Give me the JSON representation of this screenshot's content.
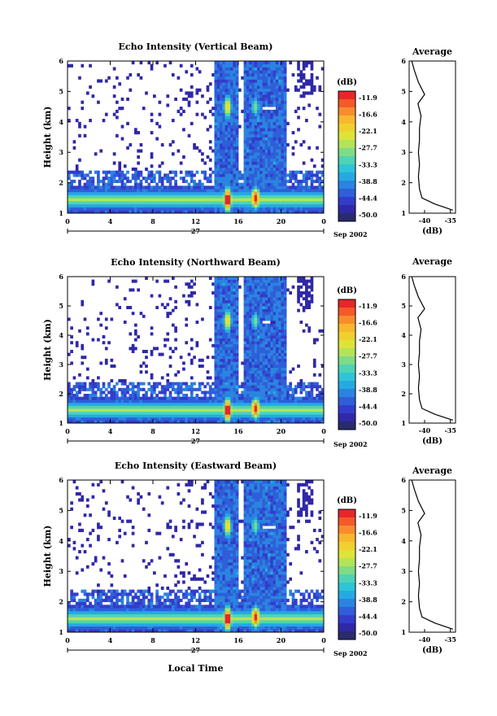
{
  "figure": {
    "xlabel": "Local Time",
    "day_label": "27",
    "month_label": "Sep 2002",
    "colorbar_unit": "(dB)",
    "average_title": "Average",
    "average_xlabel": "(dB)"
  },
  "colorbar": {
    "ticks": [
      "-11.9",
      "-16.6",
      "-22.1",
      "-27.7",
      "-33.3",
      "-38.8",
      "-44.4",
      "-50.0"
    ],
    "colors": [
      "#e8262a",
      "#f4592a",
      "#f98d2d",
      "#f8b72e",
      "#f0d02f",
      "#dde437",
      "#b3e35a",
      "#7fdb86",
      "#4fd3b5",
      "#2fc4d6",
      "#26a9e2",
      "#2a84e0",
      "#2f5ed8",
      "#333cc9",
      "#2f28a8",
      "#2a2a6e"
    ]
  },
  "chart_data": [
    {
      "type": "heatmap",
      "title": "Echo Intensity (Vertical Beam)",
      "ylabel": "Height (km)",
      "xlim": [
        0,
        24
      ],
      "ylim": [
        1,
        6
      ],
      "xticks": [
        "0",
        "4",
        "8",
        "12",
        "16",
        "20",
        "0"
      ],
      "yticks": [
        "1",
        "2",
        "3",
        "4",
        "5",
        "6"
      ],
      "value_range_dB": [
        -50.0,
        -11.9
      ],
      "features": [
        {
          "time_h": [
            14.2,
            16.0
          ],
          "height_km": [
            1.0,
            6.0
          ],
          "peak_dB": -11.9,
          "peak_height_km": 1.5
        },
        {
          "time_h": [
            16.5,
            19.5
          ],
          "height_km": [
            1.0,
            6.0
          ],
          "peak_dB": -16.6,
          "peak_height_km": 1.5
        },
        {
          "time_h": [
            0,
            24
          ],
          "height_km": [
            1.1,
            1.6
          ],
          "peak_dB": -27.7
        }
      ],
      "average": {
        "title": "Average",
        "xlabel": "(dB)",
        "xlim": [
          -43,
          -34
        ],
        "xticks": [
          "-40",
          "-35"
        ],
        "yticks": [
          "1",
          "2",
          "3",
          "4",
          "5",
          "6"
        ],
        "height_km": [
          1.1,
          1.3,
          1.5,
          1.8,
          2.2,
          2.6,
          3.0,
          3.4,
          3.8,
          4.2,
          4.4,
          4.6,
          4.9,
          5.3,
          5.7,
          6.0
        ],
        "dB": [
          -34.5,
          -38.0,
          -40.5,
          -41.0,
          -41.2,
          -41.0,
          -41.2,
          -41.0,
          -41.0,
          -40.7,
          -41.0,
          -41.3,
          -40.0,
          -41.2,
          -42.0,
          -42.5
        ]
      }
    },
    {
      "type": "heatmap",
      "title": "Echo Intensity (Northward Beam)",
      "ylabel": "Height (km)",
      "xlim": [
        0,
        24
      ],
      "ylim": [
        1,
        6
      ],
      "xticks": [
        "0",
        "4",
        "8",
        "12",
        "16",
        "20",
        "0"
      ],
      "yticks": [
        "1",
        "2",
        "3",
        "4",
        "5",
        "6"
      ],
      "value_range_dB": [
        -50.0,
        -11.9
      ],
      "features": [
        {
          "time_h": [
            14.2,
            16.0
          ],
          "height_km": [
            1.0,
            6.0
          ],
          "peak_dB": -11.9,
          "peak_height_km": 1.5
        },
        {
          "time_h": [
            16.5,
            19.5
          ],
          "height_km": [
            1.0,
            6.0
          ],
          "peak_dB": -16.6,
          "peak_height_km": 1.5
        },
        {
          "time_h": [
            0,
            24
          ],
          "height_km": [
            1.1,
            1.6
          ],
          "peak_dB": -27.7
        }
      ],
      "average": {
        "title": "Average",
        "xlabel": "(dB)",
        "xlim": [
          -43,
          -34
        ],
        "xticks": [
          "-40",
          "-35"
        ],
        "yticks": [
          "1",
          "2",
          "3",
          "4",
          "5",
          "6"
        ],
        "height_km": [
          1.1,
          1.3,
          1.5,
          1.8,
          2.2,
          2.6,
          3.0,
          3.4,
          3.8,
          4.2,
          4.4,
          4.6,
          4.9,
          5.3,
          5.7,
          6.0
        ],
        "dB": [
          -34.5,
          -38.0,
          -40.5,
          -41.0,
          -41.2,
          -41.0,
          -41.2,
          -41.0,
          -41.0,
          -40.7,
          -41.0,
          -41.3,
          -40.0,
          -41.2,
          -42.0,
          -42.5
        ]
      }
    },
    {
      "type": "heatmap",
      "title": "Echo Intensity (Eastward Beam)",
      "ylabel": "Height (km)",
      "xlim": [
        0,
        24
      ],
      "ylim": [
        1,
        6
      ],
      "xticks": [
        "0",
        "4",
        "8",
        "12",
        "16",
        "20",
        "0"
      ],
      "yticks": [
        "1",
        "2",
        "3",
        "4",
        "5",
        "6"
      ],
      "value_range_dB": [
        -50.0,
        -11.9
      ],
      "features": [
        {
          "time_h": [
            14.2,
            16.0
          ],
          "height_km": [
            1.0,
            6.0
          ],
          "peak_dB": -11.9,
          "peak_height_km": 1.5
        },
        {
          "time_h": [
            16.5,
            19.5
          ],
          "height_km": [
            1.0,
            6.0
          ],
          "peak_dB": -16.6,
          "peak_height_km": 1.5
        },
        {
          "time_h": [
            0,
            24
          ],
          "height_km": [
            1.1,
            1.6
          ],
          "peak_dB": -27.7
        }
      ],
      "average": {
        "title": "Average",
        "xlabel": "(dB)",
        "xlim": [
          -43,
          -34
        ],
        "xticks": [
          "-40",
          "-35"
        ],
        "yticks": [
          "1",
          "2",
          "3",
          "4",
          "5",
          "6"
        ],
        "height_km": [
          1.1,
          1.3,
          1.5,
          1.8,
          2.2,
          2.6,
          3.0,
          3.4,
          3.8,
          4.2,
          4.4,
          4.6,
          4.9,
          5.3,
          5.7,
          6.0
        ],
        "dB": [
          -34.5,
          -38.0,
          -40.5,
          -41.0,
          -41.2,
          -41.0,
          -41.2,
          -41.0,
          -41.0,
          -40.7,
          -41.0,
          -41.3,
          -40.0,
          -41.2,
          -42.0,
          -42.5
        ]
      }
    }
  ]
}
